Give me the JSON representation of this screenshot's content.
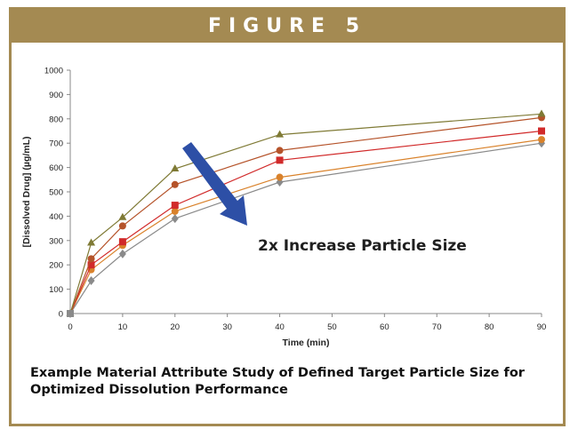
{
  "figure": {
    "header": "FIGURE 5",
    "caption": "Example Material Attribute Study of Defined Target Particle Size for Optimized Dissolution Performance"
  },
  "colors": {
    "frame": "#a48a52",
    "arrow": "#2d4fa6"
  },
  "chart_data": {
    "type": "line",
    "title": "",
    "xlabel": "Time (min)",
    "ylabel": "[Dissolved Drug] (µg/mL)",
    "xlim": [
      0,
      90
    ],
    "ylim": [
      0,
      1000
    ],
    "xticks": [
      0,
      10,
      20,
      30,
      40,
      50,
      60,
      70,
      80,
      90
    ],
    "yticks": [
      0,
      100,
      200,
      300,
      400,
      500,
      600,
      700,
      800,
      900,
      1000
    ],
    "x": [
      0,
      4,
      10,
      20,
      40,
      90
    ],
    "grid": false,
    "annotation": "2x Increase Particle Size",
    "series": [
      {
        "values": [
          0,
          290,
          395,
          595,
          735,
          820
        ],
        "color": "#7f7a35",
        "marker": "triangle"
      },
      {
        "values": [
          0,
          225,
          360,
          530,
          670,
          805
        ],
        "color": "#b5532a",
        "marker": "circle"
      },
      {
        "values": [
          0,
          200,
          295,
          445,
          630,
          750
        ],
        "color": "#d12a2a",
        "marker": "square"
      },
      {
        "values": [
          0,
          180,
          280,
          420,
          560,
          715
        ],
        "color": "#d9822b",
        "marker": "circle"
      },
      {
        "values": [
          0,
          135,
          245,
          390,
          540,
          700
        ],
        "color": "#8a8a8a",
        "marker": "diamond"
      }
    ]
  }
}
